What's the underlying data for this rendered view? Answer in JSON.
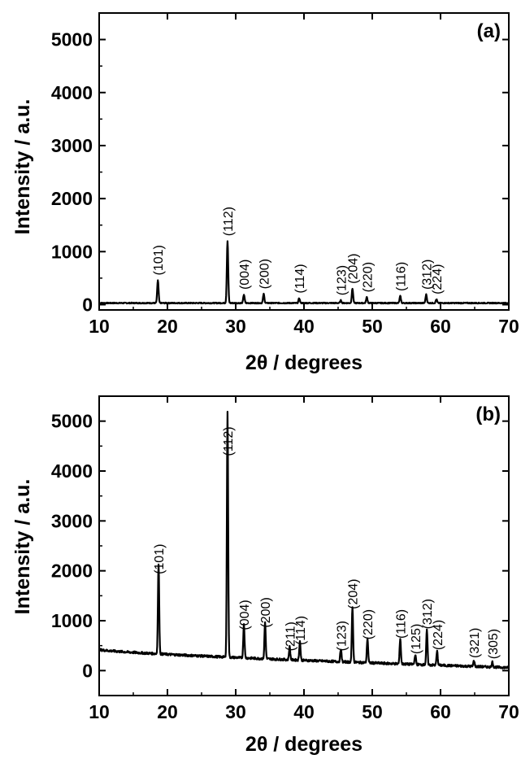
{
  "chart_data": [
    {
      "type": "line",
      "panel": "(a)",
      "xlabel": "2θ / degrees",
      "ylabel": "Intensity / a.u.",
      "xlim": [
        10,
        70
      ],
      "ylim": [
        -100,
        5500
      ],
      "xticks": [
        10,
        20,
        30,
        40,
        50,
        60,
        70
      ],
      "yticks": [
        0,
        1000,
        2000,
        3000,
        4000,
        5000
      ],
      "baseline": 30,
      "peaks": [
        {
          "x": 18.6,
          "y": 430,
          "label": "(101)"
        },
        {
          "x": 28.8,
          "y": 1170,
          "label": "(112)"
        },
        {
          "x": 31.2,
          "y": 160,
          "label": "(004)"
        },
        {
          "x": 34.1,
          "y": 170,
          "label": "(200)"
        },
        {
          "x": 39.3,
          "y": 90,
          "label": "(114)"
        },
        {
          "x": 45.4,
          "y": 50,
          "label": "(123)"
        },
        {
          "x": 47.1,
          "y": 270,
          "label": "(204)"
        },
        {
          "x": 49.2,
          "y": 110,
          "label": "(220)"
        },
        {
          "x": 54.1,
          "y": 130,
          "label": "(116)"
        },
        {
          "x": 57.9,
          "y": 160,
          "label": "(312)"
        },
        {
          "x": 59.4,
          "y": 70,
          "label": "(224)"
        }
      ]
    },
    {
      "type": "line",
      "panel": "(b)",
      "xlabel": "2θ / degrees",
      "ylabel": "Intensity / a.u.",
      "xlim": [
        10,
        70
      ],
      "ylim": [
        -500,
        5500
      ],
      "xticks": [
        10,
        20,
        30,
        40,
        50,
        60,
        70
      ],
      "yticks": [
        0,
        1000,
        2000,
        3000,
        4000,
        5000
      ],
      "baseline_start": 420,
      "baseline_end": 60,
      "peaks": [
        {
          "x": 18.7,
          "y": 1800,
          "label": "(101)"
        },
        {
          "x": 28.8,
          "y": 4900,
          "label": "(112)"
        },
        {
          "x": 31.2,
          "y": 680,
          "label": "(004)"
        },
        {
          "x": 34.3,
          "y": 730,
          "label": "(200)"
        },
        {
          "x": 37.9,
          "y": 260,
          "label": "(211)"
        },
        {
          "x": 39.4,
          "y": 380,
          "label": "(114)"
        },
        {
          "x": 45.4,
          "y": 260,
          "label": "(123)"
        },
        {
          "x": 47.1,
          "y": 1100,
          "label": "(204)"
        },
        {
          "x": 49.3,
          "y": 490,
          "label": "(220)"
        },
        {
          "x": 54.1,
          "y": 510,
          "label": "(116)"
        },
        {
          "x": 56.3,
          "y": 200,
          "label": "(125)"
        },
        {
          "x": 58.0,
          "y": 700,
          "label": "(312)"
        },
        {
          "x": 59.5,
          "y": 280,
          "label": "(224)"
        },
        {
          "x": 64.9,
          "y": 120,
          "label": "(321)"
        },
        {
          "x": 67.6,
          "y": 100,
          "label": "(305)"
        }
      ]
    }
  ]
}
